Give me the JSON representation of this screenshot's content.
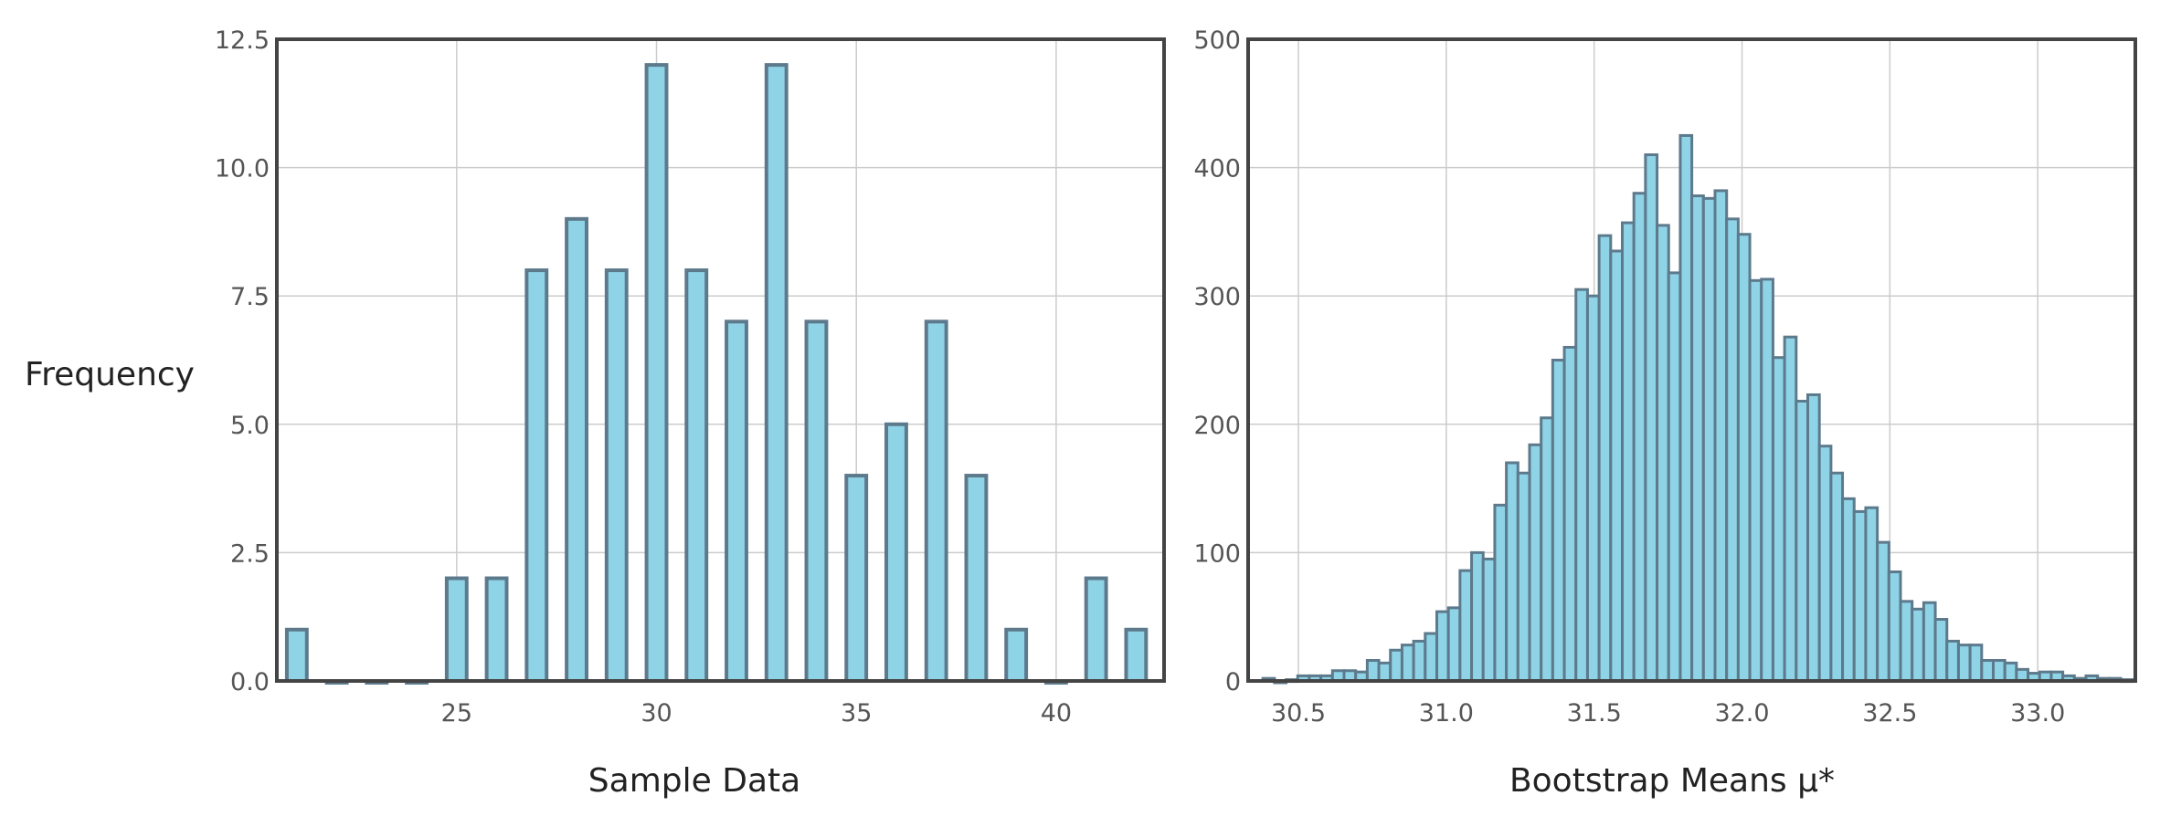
{
  "figure": {
    "shared_ylabel": "Frequency",
    "bar_fill": "#8ed3e6",
    "bar_stroke": "#5d7a8c",
    "frame_color": "#444444",
    "grid_color": "#cccccc"
  },
  "chart_data": [
    {
      "type": "bar",
      "xlabel": "Sample Data",
      "ylabel": "Frequency",
      "xlim": [
        20.5,
        42.7
      ],
      "ylim": [
        0,
        12.5
      ],
      "xticks": [
        25,
        30,
        35,
        40
      ],
      "yticks": [
        0.0,
        2.5,
        5.0,
        7.5,
        10.0,
        12.5
      ],
      "grid": true,
      "x": [
        21,
        22,
        23,
        24,
        25,
        26,
        27,
        28,
        29,
        30,
        31,
        32,
        33,
        34,
        35,
        36,
        37,
        38,
        39,
        40,
        41,
        42
      ],
      "values": [
        1,
        0,
        0,
        0,
        2,
        2,
        8,
        9,
        8,
        12,
        8,
        7,
        12,
        7,
        4,
        5,
        7,
        4,
        1,
        0,
        2,
        1
      ]
    },
    {
      "type": "bar",
      "xlabel": "Bootstrap Means μ*",
      "ylabel": "",
      "xlim": [
        30.33,
        33.33
      ],
      "ylim": [
        0,
        500
      ],
      "xticks": [
        30.5,
        31.0,
        31.5,
        32.0,
        32.5,
        33.0
      ],
      "yticks": [
        0,
        100,
        200,
        300,
        400,
        500
      ],
      "grid": true,
      "bin_start": 30.38,
      "bin_width": 0.0392,
      "values": [
        2,
        0,
        1,
        4,
        4,
        4,
        8,
        8,
        7,
        16,
        14,
        24,
        28,
        31,
        37,
        54,
        57,
        86,
        100,
        95,
        137,
        170,
        162,
        184,
        205,
        250,
        260,
        305,
        300,
        347,
        335,
        357,
        380,
        410,
        355,
        318,
        425,
        378,
        376,
        382,
        360,
        348,
        312,
        313,
        252,
        268,
        218,
        223,
        183,
        162,
        142,
        132,
        135,
        108,
        85,
        62,
        56,
        61,
        48,
        31,
        28,
        28,
        16,
        16,
        14,
        9,
        6,
        7,
        7,
        4,
        2,
        4,
        2,
        2,
        1
      ]
    }
  ]
}
